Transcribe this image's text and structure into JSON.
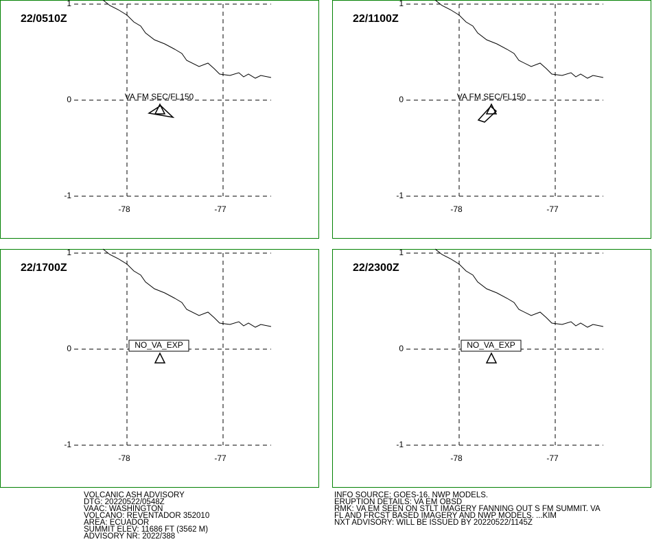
{
  "panels": [
    {
      "title": "22/0510Z",
      "label": "VA FM SEC/FL150",
      "ash": true
    },
    {
      "title": "22/1100Z",
      "label": "VA FM SEC/FL150",
      "ash": true
    },
    {
      "title": "22/1700Z",
      "label": "NO_VA_EXP",
      "ash": false
    },
    {
      "title": "22/2300Z",
      "label": "NO_VA_EXP",
      "ash": false
    }
  ],
  "axes": {
    "lon_ticks": [
      -78,
      -77
    ],
    "lat_ticks": [
      1,
      0,
      -1
    ]
  },
  "info_left": [
    "VOLCANIC ASH ADVISORY",
    "DTG: 20220522/0548Z",
    "VAAC: WASHINGTON",
    "VOLCANO: REVENTADOR 352010",
    "AREA: ECUADOR",
    "SUMMIT ELEV: 11686 FT (3562 M)",
    "ADVISORY NR: 2022/388"
  ],
  "info_right": [
    "INFO SOURCE: GOES-16. NWP MODELS.",
    "ERUPTION DETAILS: VA EM OBSD",
    "RMK: VA EM SEEN ON STLT IMAGERY FANNING OUT S FM SUMMIT. VA",
    "FL AND FRCST BASED IMAGERY AND NWP MODELS. ...KIM",
    "NXT ADVISORY: WILL BE ISSUED BY 20220522/1145Z"
  ]
}
